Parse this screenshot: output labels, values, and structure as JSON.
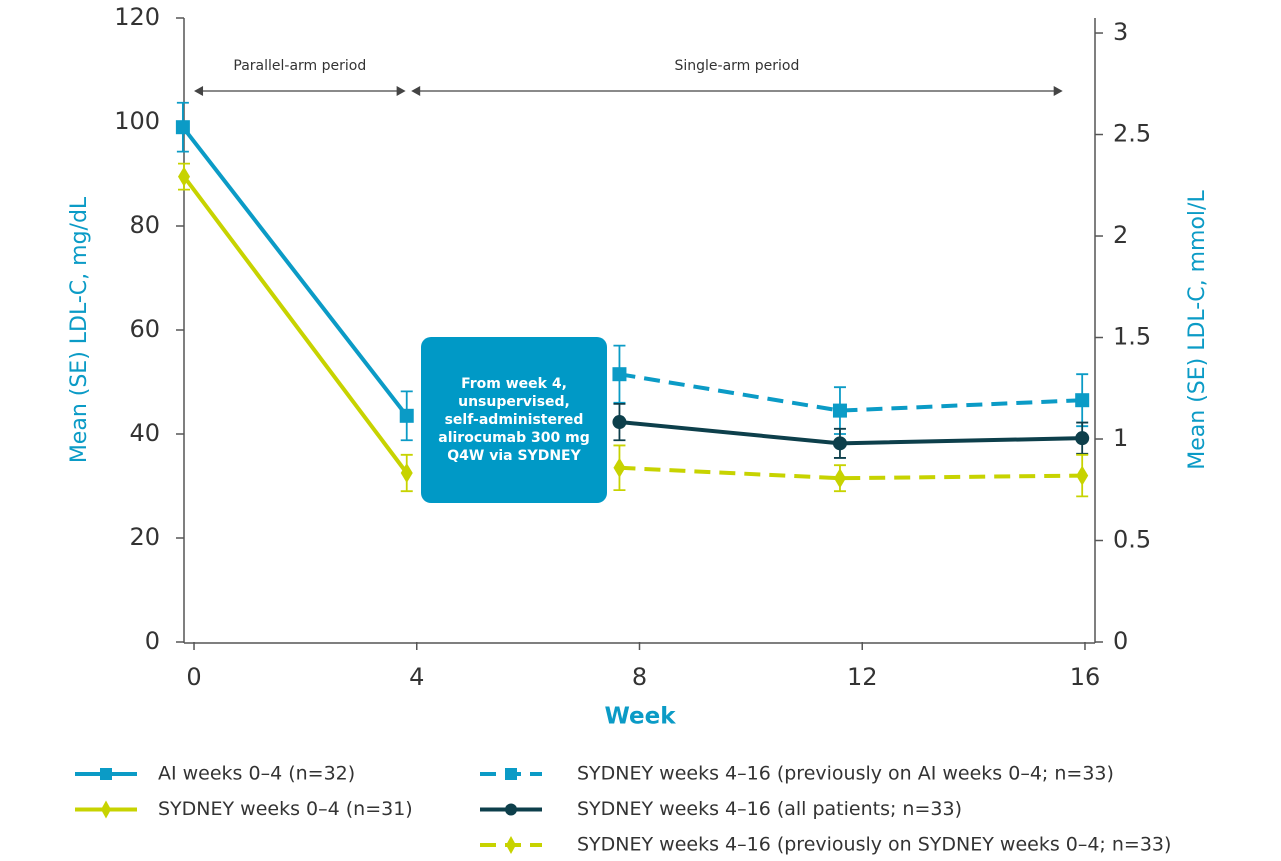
{
  "chart_data": {
    "type": "line",
    "xlabel": "Week",
    "ylabel": "Mean (SE) LDL-C, mg/dL",
    "y2label": "Mean (SE) LDL-C, mmol/L",
    "xlim": [
      -0.18,
      16.18
    ],
    "xticks": [
      0,
      4,
      8,
      12,
      16
    ],
    "ylim": [
      0,
      120
    ],
    "yticks": [
      0,
      20,
      40,
      60,
      80,
      100,
      120
    ],
    "y2lim": [
      0,
      3.074
    ],
    "y2ticks": [
      0,
      0.5,
      1,
      1.5,
      2,
      2.5,
      3
    ],
    "periods": [
      {
        "label": "Parallel-arm period",
        "from": 0,
        "to": 3.8
      },
      {
        "label": "Single-arm period",
        "from": 3.9,
        "to": 15.6
      }
    ],
    "annotation": [
      "From week 4,",
      "unsupervised,",
      "self-administered",
      "alirocumab 300 mg",
      "Q4W via SYDNEY"
    ],
    "series": [
      {
        "name": "AI weeks 0–4 (n=32)",
        "color": "#0b9bc6",
        "marker": "square",
        "dashed": false,
        "x": [
          -0.2,
          3.82
        ],
        "values": [
          99,
          43.5
        ],
        "errors": [
          4.7,
          4.7
        ]
      },
      {
        "name": "SYDNEY weeks 0–4 (n=31)",
        "color": "#c7d300",
        "marker": "diamond",
        "dashed": false,
        "x": [
          -0.18,
          3.82
        ],
        "values": [
          89.5,
          32.5
        ],
        "errors": [
          2.5,
          3.5
        ]
      },
      {
        "name": "SYDNEY weeks 4–16 (previously on AI weeks 0–4; n=33)",
        "color": "#0b9bc6",
        "marker": "square",
        "dashed": true,
        "x": [
          7.64,
          11.6,
          15.95
        ],
        "values": [
          51.5,
          44.5,
          46.5
        ],
        "errors": [
          5.5,
          4.5,
          5
        ]
      },
      {
        "name": "SYDNEY weeks 4–16 (all patients; n=33)",
        "color": "#0d3f4b",
        "marker": "circle",
        "dashed": false,
        "x": [
          7.64,
          11.6,
          15.95
        ],
        "values": [
          42.3,
          38.2,
          39.2
        ],
        "errors": [
          3.5,
          2.8,
          3
        ]
      },
      {
        "name": "SYDNEY weeks 4–16 (previously on SYDNEY weeks 0–4; n=33)",
        "color": "#c7d300",
        "marker": "diamond",
        "dashed": true,
        "x": [
          7.64,
          11.6,
          15.95
        ],
        "values": [
          33.5,
          31.5,
          32
        ],
        "errors": [
          4.3,
          2.5,
          4
        ]
      }
    ]
  }
}
